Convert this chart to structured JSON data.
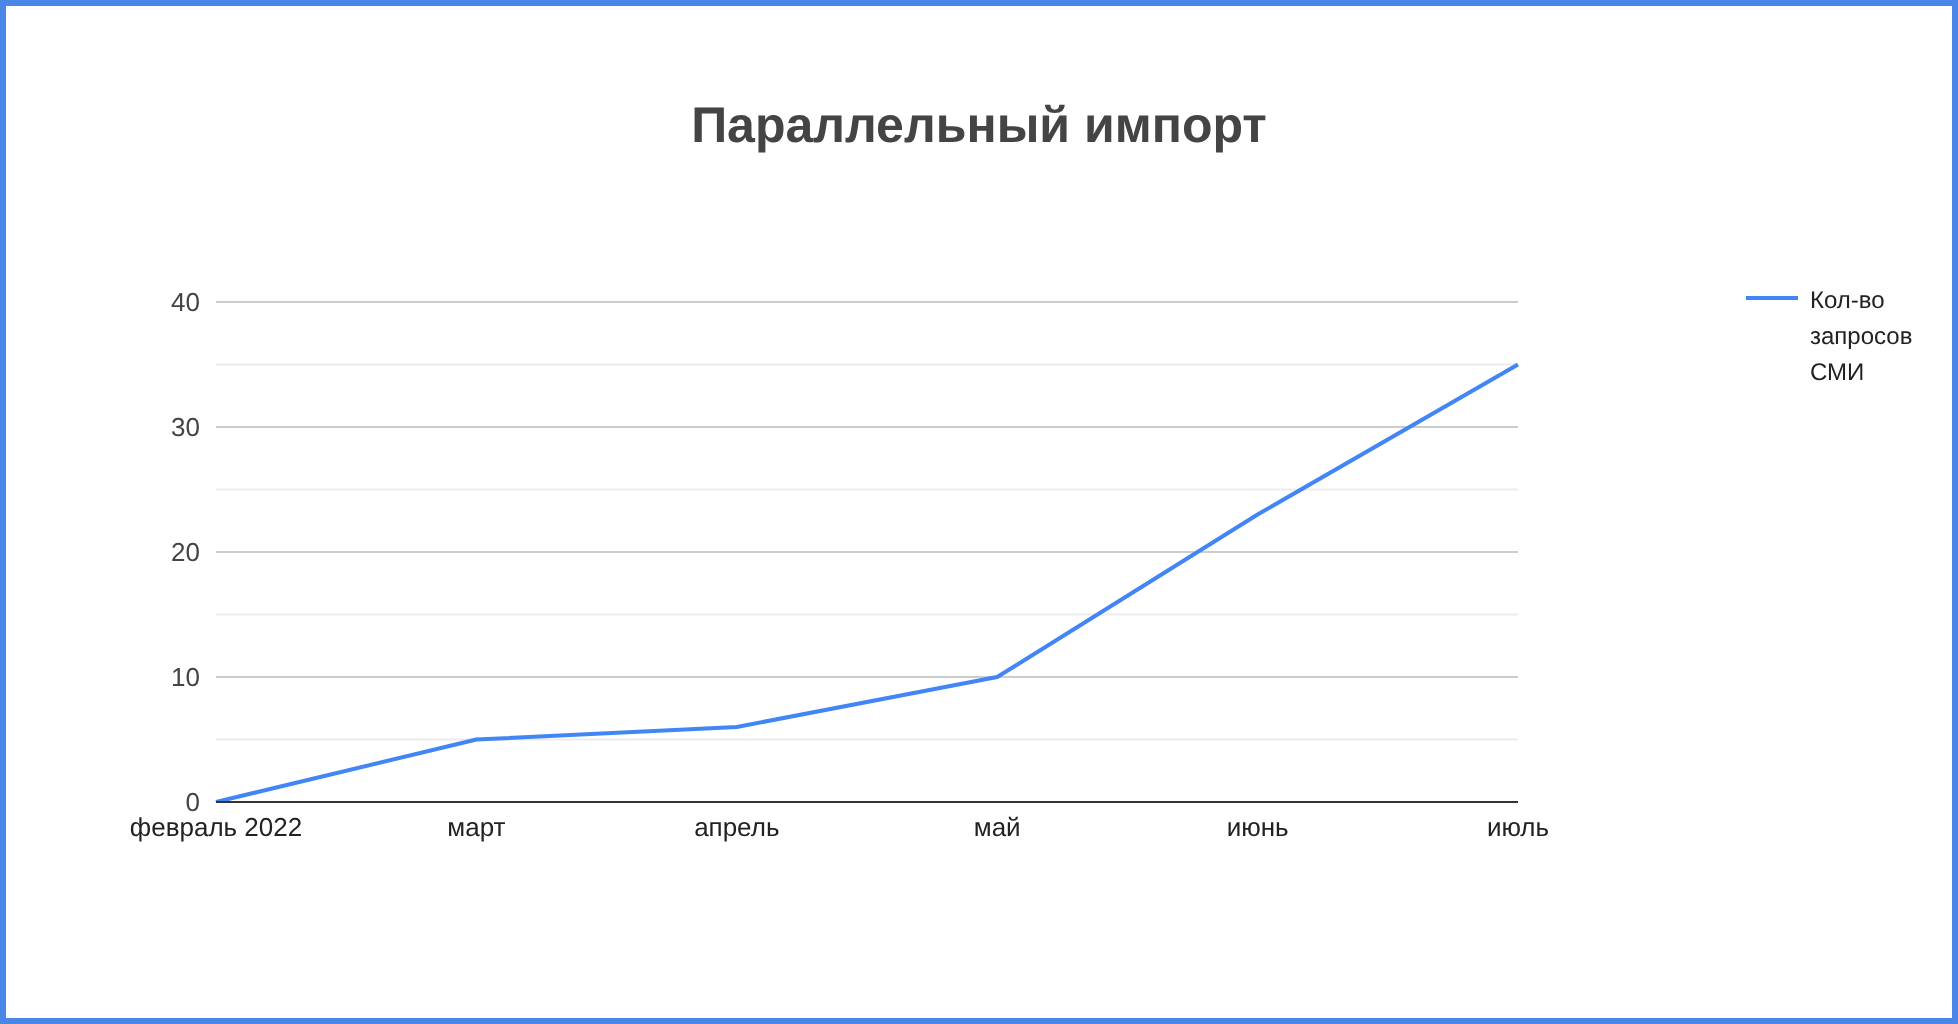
{
  "chart_data": {
    "type": "line",
    "title": "Параллельный импорт",
    "categories": [
      "февраль 2022",
      "март",
      "апрель",
      "май",
      "июнь",
      "июль"
    ],
    "series": [
      {
        "name": "Кол-во запросов СМИ",
        "color": "#4285f4",
        "values": [
          0,
          5,
          6,
          10,
          23,
          35
        ]
      }
    ],
    "ylim": [
      0,
      40
    ],
    "yticks": [
      0,
      {
        "value": 5,
        "label": null
      },
      10,
      {
        "value": 15,
        "label": null
      },
      20,
      {
        "value": 25,
        "label": null
      },
      30,
      {
        "value": 35,
        "label": null
      },
      40
    ],
    "grid": "y",
    "legend": "top right",
    "marker": "none",
    "line_style": "solid"
  }
}
